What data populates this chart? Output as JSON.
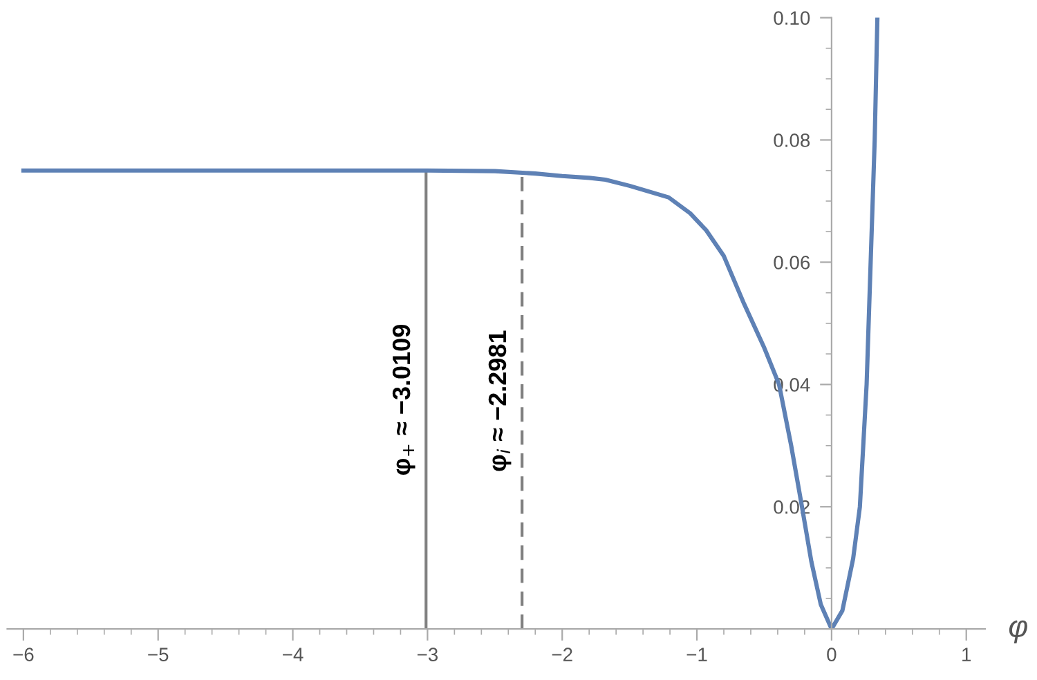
{
  "chart_data": {
    "type": "line",
    "xlabel": "φ",
    "x": [
      -6,
      -3,
      -2.5,
      -2.2,
      -2,
      -1.8,
      -1.68,
      -1.5,
      -1.21,
      -1.05,
      -0.93,
      -0.8,
      -0.65,
      -0.5,
      -0.39,
      -0.3,
      -0.22,
      -0.15,
      -0.08,
      0,
      0.08,
      0.16,
      0.21,
      0.26,
      0.29,
      0.32,
      0.34
    ],
    "series": [
      {
        "color": "#5e81b5",
        "values": [
          0.075,
          0.075,
          0.0749,
          0.0745,
          0.0741,
          0.0738,
          0.0735,
          0.0725,
          0.0706,
          0.068,
          0.0652,
          0.061,
          0.0532,
          0.046,
          0.04,
          0.03,
          0.02,
          0.011,
          0.004,
          0,
          0.003,
          0.0115,
          0.02,
          0.04,
          0.06,
          0.08,
          0.1
        ]
      }
    ],
    "xlim": [
      -6.12,
      1.14
    ],
    "ylim": [
      0,
      0.1
    ],
    "xticks": [
      {
        "value": -6,
        "label": "−6"
      },
      {
        "value": -5,
        "label": "−5"
      },
      {
        "value": -4,
        "label": "−4"
      },
      {
        "value": -3,
        "label": "−3"
      },
      {
        "value": -2,
        "label": "−2"
      },
      {
        "value": -1,
        "label": "−1"
      },
      0,
      1
    ],
    "yticks": [
      {
        "value": 0.02,
        "label": "0.02"
      },
      {
        "value": 0.04,
        "label": "0.04"
      },
      {
        "value": 0.06,
        "label": "0.06"
      },
      {
        "value": 0.08,
        "label": "0.08"
      },
      {
        "value": 0.1,
        "label": "0.10"
      }
    ],
    "ref_lines": [
      {
        "axis": "x",
        "value": -3.0109,
        "label": "φ$_{+}$ ≈ −3.0109",
        "color": "#808080",
        "line_style": "solid"
      },
      {
        "axis": "x",
        "value": -2.2981,
        "label": "φ$_{i}$ ≈ −2.2981",
        "color": "#808080",
        "line_style": "dashed"
      }
    ],
    "grid": false,
    "marker": "none",
    "line_style": "solid"
  }
}
